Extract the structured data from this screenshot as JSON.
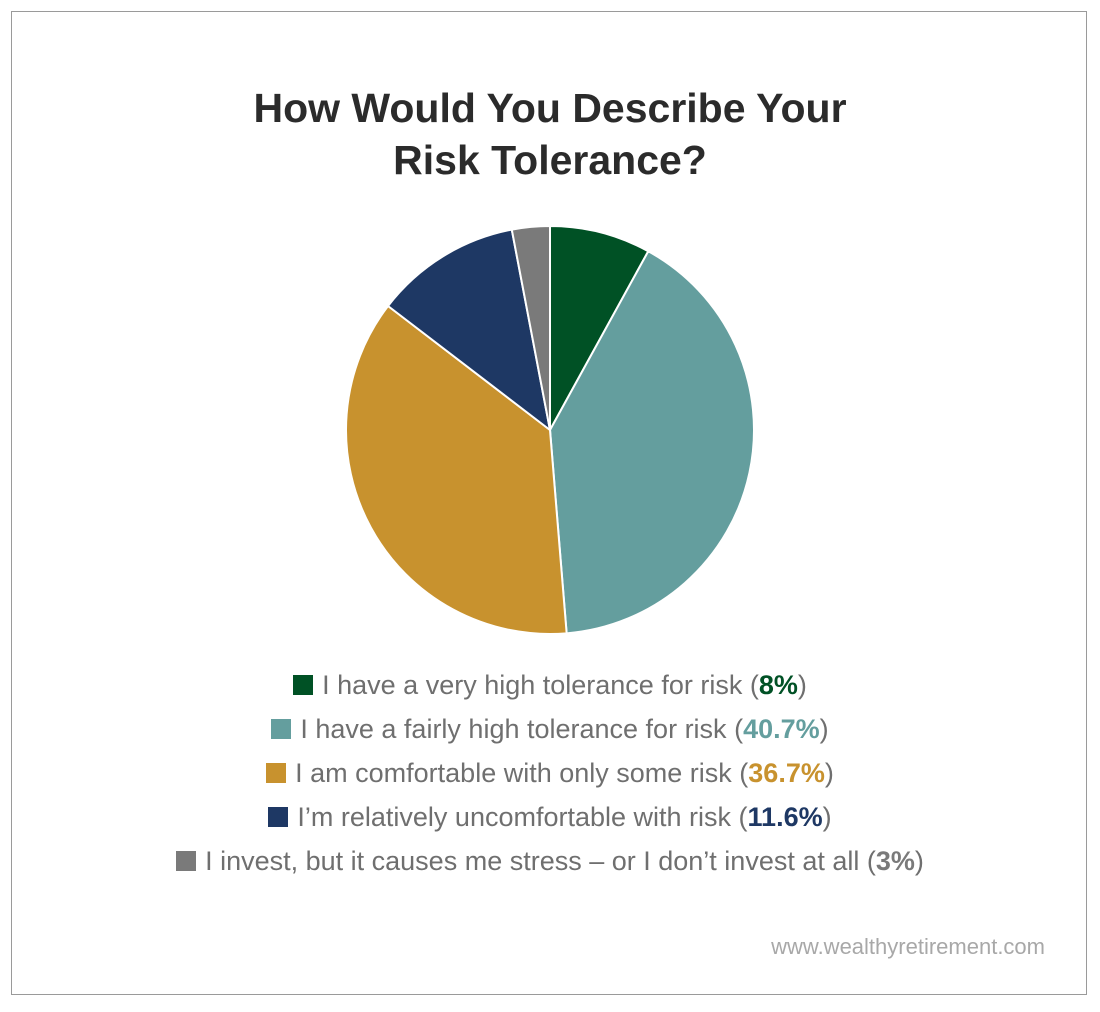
{
  "chart_data": {
    "type": "pie",
    "title": "How Would You Describe Your Risk Tolerance?",
    "title_lines": [
      "How Would You Describe Your",
      "Risk Tolerance?"
    ],
    "slices": [
      {
        "label": "I have a very high tolerance for risk",
        "value": 8,
        "value_label": "8%",
        "color": "#005125"
      },
      {
        "label": "I have a fairly high tolerance for risk",
        "value": 40.7,
        "value_label": "40.7%",
        "color": "#649e9e"
      },
      {
        "label": "I am comfortable with only some risk",
        "value": 36.7,
        "value_label": "36.7%",
        "color": "#c8922e"
      },
      {
        "label": "I’m relatively uncomfortable with risk",
        "value": 11.6,
        "value_label": "11.6%",
        "color": "#1e3864"
      },
      {
        "label": "I invest, but it causes me stress – or I don’t invest at all",
        "value": 3,
        "value_label": "3%",
        "color": "#7a7a7a"
      }
    ],
    "legend_position": "bottom"
  },
  "footer": {
    "source_text": "www.wealthyretirement.com"
  }
}
